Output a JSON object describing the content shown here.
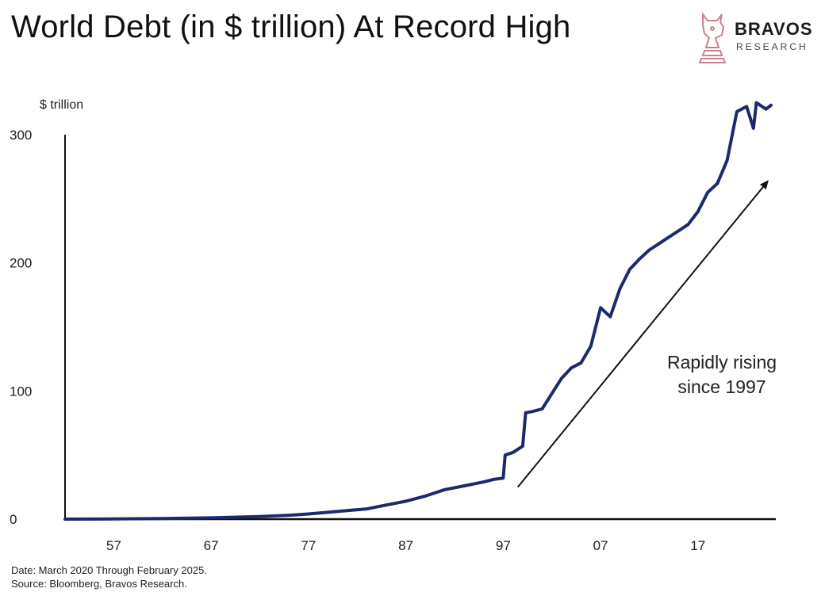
{
  "title": "World Debt (in $ trillion) At Record High",
  "logo": {
    "word": "BRAVOS",
    "sub": "RESEARCH",
    "icon": "bull-chess-knight-icon",
    "icon_color": "#c8838e"
  },
  "footnotes": {
    "date": "Date: March 2020 Through February 2025.",
    "source": "Source: Bloomberg, Bravos Research."
  },
  "chart_data": {
    "type": "line",
    "ylabel": "$ trillion",
    "xlabel": "",
    "ylim": [
      0,
      300
    ],
    "xlim": [
      1952,
      2025
    ],
    "y_ticks": [
      0,
      100,
      200,
      300
    ],
    "x_ticks": [
      1957,
      1967,
      1977,
      1987,
      1997,
      2007,
      2017
    ],
    "x_tick_labels": [
      "57",
      "67",
      "77",
      "87",
      "97",
      "07",
      "17"
    ],
    "grid": false,
    "line_color": "#1c2a6b",
    "series": [
      {
        "x": [
          1952,
          1957,
          1962,
          1967,
          1972,
          1975,
          1977,
          1980,
          1983,
          1985,
          1987,
          1989,
          1991,
          1993,
          1995,
          1996,
          1997,
          1997.2,
          1998,
          1999,
          1999.3,
          2000,
          2001,
          2002,
          2003,
          2004,
          2005,
          2006,
          2007,
          2008,
          2009,
          2010,
          2011,
          2012,
          2013,
          2014,
          2015,
          2016,
          2017,
          2018,
          2019,
          2020,
          2021,
          2022,
          2022.7,
          2023,
          2024,
          2024.5
        ],
        "values": [
          0,
          0.1,
          0.5,
          1,
          2,
          3,
          4,
          6,
          8,
          11,
          14,
          18,
          23,
          26,
          29,
          31,
          32,
          50,
          52,
          57,
          83,
          84,
          86,
          98,
          110,
          118,
          122,
          135,
          165,
          158,
          180,
          195,
          203,
          210,
          215,
          220,
          225,
          230,
          240,
          255,
          262,
          280,
          318,
          322,
          305,
          325,
          320,
          323
        ]
      }
    ],
    "annotation": {
      "text_line1": "Rapidly rising",
      "text_line2": "since 1997",
      "arrow_from": [
        1998.5,
        25
      ],
      "arrow_to": [
        2024.2,
        264
      ]
    }
  }
}
